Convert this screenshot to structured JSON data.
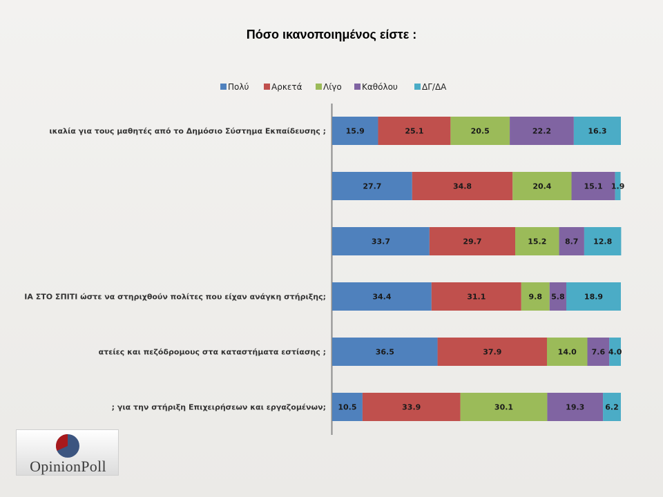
{
  "title": "Πόσο ικανοποιημένος είστε :",
  "logo": {
    "text": "OpinionPoll"
  },
  "chart_data": {
    "type": "bar",
    "orientation": "horizontal",
    "stacked": true,
    "categories": [
      "ικαλία για τους μαθητές από το Δημόσιο Σύστημα Εκπαίδευσης ;",
      "",
      "",
      "ΙΑ ΣΤΟ ΣΠΙΤΙ ώστε να στηριχθούν πολίτες που είχαν ανάγκη στήριξης;",
      "ατείες και πεζόδρομους στα  καταστήματα εστίασης ;",
      "; για την στήριξη Επιχειρήσεων και εργαζομένων;"
    ],
    "series": [
      {
        "name": "Πολύ",
        "color": "#4f81bd",
        "values": [
          15.9,
          27.7,
          33.7,
          34.4,
          36.5,
          10.5
        ]
      },
      {
        "name": "Αρκετά",
        "color": "#c0504d",
        "values": [
          25.1,
          34.8,
          29.7,
          31.1,
          37.9,
          33.9
        ]
      },
      {
        "name": "Λίγο",
        "color": "#9bbb59",
        "values": [
          20.5,
          20.4,
          15.2,
          9.8,
          14.0,
          30.1
        ]
      },
      {
        "name": "Καθόλου",
        "color": "#8064a2",
        "values": [
          22.2,
          15.1,
          8.7,
          5.8,
          7.6,
          19.3
        ]
      },
      {
        "name": "ΔΓ/ΔΑ",
        "color": "#4bacc6",
        "values": [
          16.3,
          1.9,
          12.8,
          18.9,
          4.0,
          6.2
        ]
      }
    ],
    "xlim": [
      0,
      100
    ],
    "grid": false,
    "legend": "top"
  }
}
